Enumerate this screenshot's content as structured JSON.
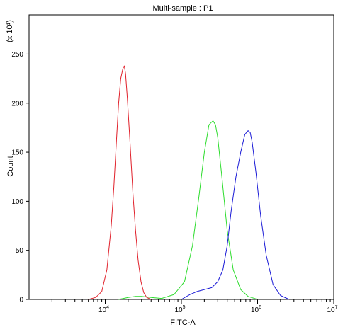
{
  "chart_data": {
    "type": "line",
    "title": "Multi-sample : P1",
    "xlabel": "FITC-A",
    "ylabel": "Count",
    "y_multiplier_label": "(x 10¹)",
    "x_scale": "log",
    "xlim": [
      1000,
      10000000
    ],
    "ylim": [
      0,
      290
    ],
    "x_ticks": [
      {
        "value": 10000,
        "base": "10",
        "exp": "4"
      },
      {
        "value": 100000,
        "base": "10",
        "exp": "5"
      },
      {
        "value": 1000000,
        "base": "10",
        "exp": "6"
      },
      {
        "value": 10000000,
        "base": "10",
        "exp": "7"
      }
    ],
    "y_ticks": [
      0,
      50,
      100,
      150,
      200,
      250
    ],
    "grid": false,
    "legend": "none",
    "series": [
      {
        "color": "#e0202a",
        "x": [
          6000,
          7500,
          9000,
          10500,
          12000,
          13000,
          14000,
          15000,
          16000,
          17000,
          17800,
          18500,
          19500,
          21000,
          23000,
          25000,
          27000,
          29500,
          32000,
          35000,
          40000
        ],
        "y": [
          0,
          2,
          8,
          30,
          75,
          115,
          160,
          200,
          225,
          235,
          238,
          230,
          205,
          165,
          110,
          70,
          40,
          18,
          7,
          2,
          0
        ]
      },
      {
        "color": "#2ddc2d",
        "x": [
          15000,
          20000,
          25000,
          30000,
          40000,
          55000,
          80000,
          110000,
          140000,
          170000,
          200000,
          230000,
          260000,
          280000,
          300000,
          340000,
          400000,
          480000,
          600000,
          750000,
          1000000
        ],
        "y": [
          0,
          2,
          3,
          3,
          2,
          1,
          5,
          18,
          55,
          105,
          150,
          178,
          182,
          178,
          165,
          125,
          70,
          30,
          10,
          3,
          0
        ]
      },
      {
        "color": "#1a1ad6",
        "x": [
          100000,
          130000,
          160000,
          200000,
          250000,
          300000,
          350000,
          400000,
          450000,
          520000,
          600000,
          680000,
          750000,
          800000,
          850000,
          950000,
          1100000,
          1300000,
          1600000,
          2000000,
          2600000
        ],
        "y": [
          0,
          5,
          8,
          10,
          12,
          18,
          30,
          55,
          90,
          125,
          150,
          168,
          172,
          170,
          160,
          130,
          85,
          45,
          15,
          4,
          0
        ]
      }
    ]
  }
}
